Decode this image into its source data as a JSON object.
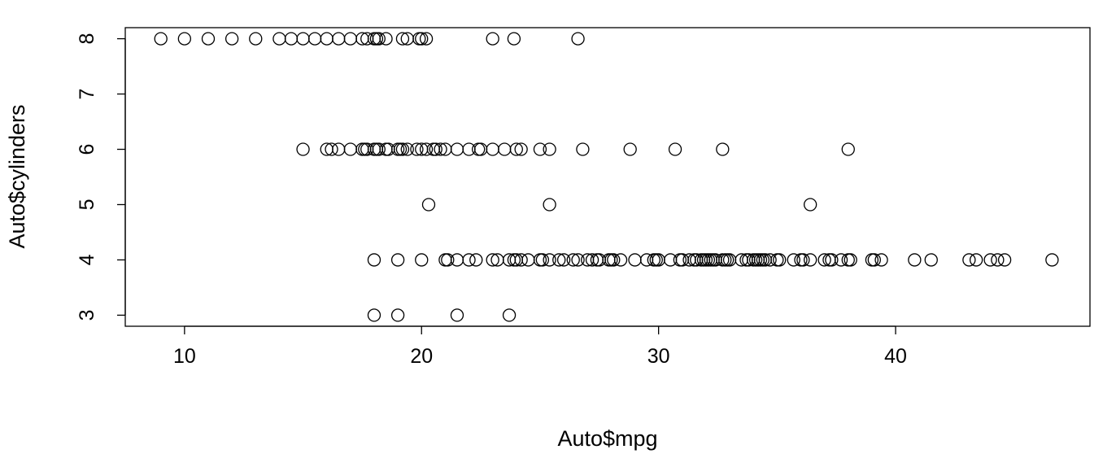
{
  "chart_data": {
    "type": "scatter",
    "title": "",
    "xlabel": "Auto$mpg",
    "ylabel": "Auto$cylinders",
    "xlim": [
      7.5,
      48.2
    ],
    "ylim": [
      2.8,
      8.2
    ],
    "x_ticks": [
      10,
      20,
      30,
      40
    ],
    "y_ticks": [
      3,
      4,
      5,
      6,
      7,
      8
    ],
    "grid": false,
    "legend": "none",
    "marker": "open-circle",
    "series": [
      {
        "points": [
          {
            "x": 9,
            "y": 8
          },
          {
            "x": 10,
            "y": 8
          },
          {
            "x": 11,
            "y": 8
          },
          {
            "x": 12,
            "y": 8
          },
          {
            "x": 13,
            "y": 8
          },
          {
            "x": 14,
            "y": 8
          },
          {
            "x": 14.5,
            "y": 8
          },
          {
            "x": 15,
            "y": 8
          },
          {
            "x": 15.5,
            "y": 8
          },
          {
            "x": 16,
            "y": 8
          },
          {
            "x": 16.5,
            "y": 8
          },
          {
            "x": 17,
            "y": 8
          },
          {
            "x": 17.5,
            "y": 8
          },
          {
            "x": 17.7,
            "y": 8
          },
          {
            "x": 18,
            "y": 8
          },
          {
            "x": 18.1,
            "y": 8
          },
          {
            "x": 18.2,
            "y": 8
          },
          {
            "x": 18.5,
            "y": 8
          },
          {
            "x": 19.2,
            "y": 8
          },
          {
            "x": 19.4,
            "y": 8
          },
          {
            "x": 19.9,
            "y": 8
          },
          {
            "x": 20,
            "y": 8
          },
          {
            "x": 20.2,
            "y": 8
          },
          {
            "x": 23,
            "y": 8
          },
          {
            "x": 23.9,
            "y": 8
          },
          {
            "x": 26.6,
            "y": 8
          },
          {
            "x": 18,
            "y": 4
          },
          {
            "x": 19,
            "y": 4
          },
          {
            "x": 20,
            "y": 4
          },
          {
            "x": 21,
            "y": 4
          },
          {
            "x": 21.1,
            "y": 4
          },
          {
            "x": 21.5,
            "y": 4
          },
          {
            "x": 22,
            "y": 4
          },
          {
            "x": 22.3,
            "y": 4
          },
          {
            "x": 23,
            "y": 4
          },
          {
            "x": 23.2,
            "y": 4
          },
          {
            "x": 23.7,
            "y": 4
          },
          {
            "x": 23.9,
            "y": 4
          },
          {
            "x": 24,
            "y": 4
          },
          {
            "x": 24.2,
            "y": 4
          },
          {
            "x": 24.5,
            "y": 4
          },
          {
            "x": 25,
            "y": 4
          },
          {
            "x": 25.1,
            "y": 4
          },
          {
            "x": 25.4,
            "y": 4
          },
          {
            "x": 25.8,
            "y": 4
          },
          {
            "x": 26,
            "y": 4
          },
          {
            "x": 26.4,
            "y": 4
          },
          {
            "x": 26.6,
            "y": 4
          },
          {
            "x": 27,
            "y": 4
          },
          {
            "x": 27.2,
            "y": 4
          },
          {
            "x": 27.4,
            "y": 4
          },
          {
            "x": 27.5,
            "y": 4
          },
          {
            "x": 27.9,
            "y": 4
          },
          {
            "x": 28,
            "y": 4
          },
          {
            "x": 28.1,
            "y": 4
          },
          {
            "x": 28.4,
            "y": 4
          },
          {
            "x": 29,
            "y": 4
          },
          {
            "x": 29.5,
            "y": 4
          },
          {
            "x": 29.8,
            "y": 4
          },
          {
            "x": 29.9,
            "y": 4
          },
          {
            "x": 30,
            "y": 4
          },
          {
            "x": 30.5,
            "y": 4
          },
          {
            "x": 30.9,
            "y": 4
          },
          {
            "x": 31,
            "y": 4
          },
          {
            "x": 31.3,
            "y": 4
          },
          {
            "x": 31.5,
            "y": 4
          },
          {
            "x": 31.6,
            "y": 4
          },
          {
            "x": 31.8,
            "y": 4
          },
          {
            "x": 31.9,
            "y": 4
          },
          {
            "x": 32,
            "y": 4
          },
          {
            "x": 32.1,
            "y": 4
          },
          {
            "x": 32.2,
            "y": 4
          },
          {
            "x": 32.3,
            "y": 4
          },
          {
            "x": 32.4,
            "y": 4
          },
          {
            "x": 32.7,
            "y": 4
          },
          {
            "x": 32.8,
            "y": 4
          },
          {
            "x": 32.9,
            "y": 4
          },
          {
            "x": 33,
            "y": 4
          },
          {
            "x": 33.5,
            "y": 4
          },
          {
            "x": 33.7,
            "y": 4
          },
          {
            "x": 33.8,
            "y": 4
          },
          {
            "x": 34,
            "y": 4
          },
          {
            "x": 34.1,
            "y": 4
          },
          {
            "x": 34.2,
            "y": 4
          },
          {
            "x": 34.3,
            "y": 4
          },
          {
            "x": 34.4,
            "y": 4
          },
          {
            "x": 34.5,
            "y": 4
          },
          {
            "x": 34.7,
            "y": 4
          },
          {
            "x": 35,
            "y": 4
          },
          {
            "x": 35.1,
            "y": 4
          },
          {
            "x": 35.7,
            "y": 4
          },
          {
            "x": 36,
            "y": 4
          },
          {
            "x": 36.1,
            "y": 4
          },
          {
            "x": 36.4,
            "y": 4
          },
          {
            "x": 37,
            "y": 4
          },
          {
            "x": 37.2,
            "y": 4
          },
          {
            "x": 37.3,
            "y": 4
          },
          {
            "x": 37.7,
            "y": 4
          },
          {
            "x": 38,
            "y": 4
          },
          {
            "x": 38.1,
            "y": 4
          },
          {
            "x": 39,
            "y": 4
          },
          {
            "x": 39.1,
            "y": 4
          },
          {
            "x": 39.4,
            "y": 4
          },
          {
            "x": 40.8,
            "y": 4
          },
          {
            "x": 41.5,
            "y": 4
          },
          {
            "x": 43.1,
            "y": 4
          },
          {
            "x": 43.4,
            "y": 4
          },
          {
            "x": 44,
            "y": 4
          },
          {
            "x": 44.3,
            "y": 4
          },
          {
            "x": 44.6,
            "y": 4
          },
          {
            "x": 46.6,
            "y": 4
          },
          {
            "x": 15,
            "y": 6
          },
          {
            "x": 16,
            "y": 6
          },
          {
            "x": 16.2,
            "y": 6
          },
          {
            "x": 16.5,
            "y": 6
          },
          {
            "x": 17,
            "y": 6
          },
          {
            "x": 17.5,
            "y": 6
          },
          {
            "x": 17.6,
            "y": 6
          },
          {
            "x": 17.7,
            "y": 6
          },
          {
            "x": 18,
            "y": 6
          },
          {
            "x": 18.1,
            "y": 6
          },
          {
            "x": 18.2,
            "y": 6
          },
          {
            "x": 18.5,
            "y": 6
          },
          {
            "x": 18.6,
            "y": 6
          },
          {
            "x": 19,
            "y": 6
          },
          {
            "x": 19.1,
            "y": 6
          },
          {
            "x": 19.2,
            "y": 6
          },
          {
            "x": 19.4,
            "y": 6
          },
          {
            "x": 19.8,
            "y": 6
          },
          {
            "x": 20,
            "y": 6
          },
          {
            "x": 20.2,
            "y": 6
          },
          {
            "x": 20.5,
            "y": 6
          },
          {
            "x": 20.6,
            "y": 6
          },
          {
            "x": 20.8,
            "y": 6
          },
          {
            "x": 21,
            "y": 6
          },
          {
            "x": 21.5,
            "y": 6
          },
          {
            "x": 22,
            "y": 6
          },
          {
            "x": 22.4,
            "y": 6
          },
          {
            "x": 22.5,
            "y": 6
          },
          {
            "x": 23,
            "y": 6
          },
          {
            "x": 23.5,
            "y": 6
          },
          {
            "x": 24,
            "y": 6
          },
          {
            "x": 24.2,
            "y": 6
          },
          {
            "x": 25,
            "y": 6
          },
          {
            "x": 25.4,
            "y": 6
          },
          {
            "x": 26.8,
            "y": 6
          },
          {
            "x": 28.8,
            "y": 6
          },
          {
            "x": 30.7,
            "y": 6
          },
          {
            "x": 32.7,
            "y": 6
          },
          {
            "x": 38,
            "y": 6
          },
          {
            "x": 20.3,
            "y": 5
          },
          {
            "x": 25.4,
            "y": 5
          },
          {
            "x": 36.4,
            "y": 5
          },
          {
            "x": 18,
            "y": 3
          },
          {
            "x": 19,
            "y": 3
          },
          {
            "x": 21.5,
            "y": 3
          },
          {
            "x": 23.7,
            "y": 3
          }
        ]
      }
    ]
  }
}
